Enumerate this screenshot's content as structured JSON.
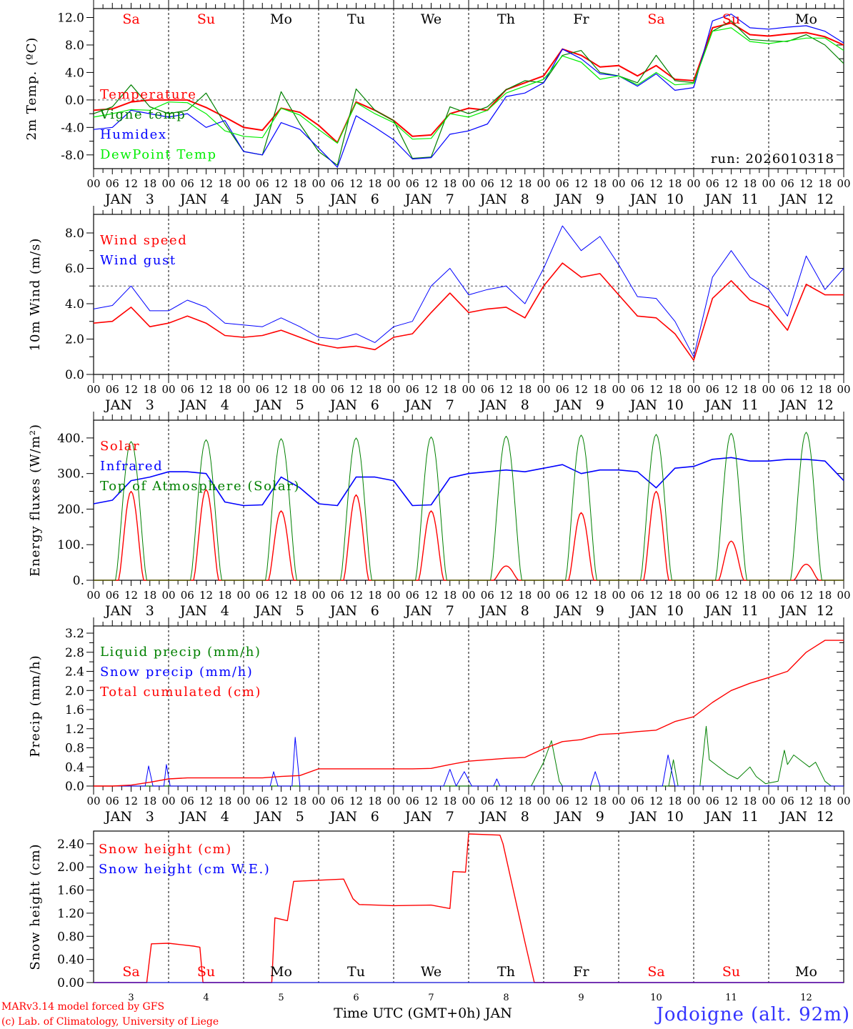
{
  "meteogram": {
    "station": "Jodoigne (alt. 92m)",
    "run_label": "run: 2026010318",
    "credit_line1": "MARv3.14 model forced by GFS",
    "credit_line2": "(c) Lab. of Climatology, University of Liege",
    "xlabel": "Time UTC (GMT+0h) JAN",
    "month": "JAN",
    "dates": [
      "3",
      "4",
      "5",
      "6",
      "7",
      "8",
      "9",
      "10",
      "11",
      "12"
    ],
    "hour_labels": [
      "00",
      "06",
      "12",
      "18"
    ],
    "days": [
      {
        "label": "Sa",
        "weekend": true
      },
      {
        "label": "Su",
        "weekend": true
      },
      {
        "label": "Mo",
        "weekend": false
      },
      {
        "label": "Tu",
        "weekend": false
      },
      {
        "label": "We",
        "weekend": false
      },
      {
        "label": "Th",
        "weekend": false
      },
      {
        "label": "Fr",
        "weekend": false
      },
      {
        "label": "Sa",
        "weekend": true
      },
      {
        "label": "Su",
        "weekend": true
      },
      {
        "label": "Mo",
        "weekend": false
      }
    ],
    "colors": {
      "red": "#ff0000",
      "blue": "#0000ff",
      "darkgreen": "#008000",
      "green": "#00ee00",
      "weekend": "#ff0000",
      "weekday": "#000000"
    }
  },
  "chart_data": [
    {
      "type": "line",
      "id": "temp",
      "ylabel": "2m Temp. (ºC)",
      "ylim": [
        -10,
        13.3
      ],
      "yticks": [
        12,
        8,
        4,
        0,
        -4,
        -8
      ],
      "ytick_labels": [
        "12.0",
        "8.0",
        "4.0",
        "0.0",
        "-4.0",
        "-8.0"
      ],
      "ref_line": 0,
      "x_start_hour": 0,
      "x_step_hours": 6,
      "series": [
        {
          "name": "Temperature",
          "color": "#ff0000",
          "width": 2,
          "values": [
            -1.5,
            -1.3,
            -0.3,
            0,
            0,
            0,
            -1.1,
            -2.5,
            -4,
            -4.4,
            -1.2,
            -1.8,
            -3.7,
            -6.2,
            -0.3,
            -1.5,
            -3.0,
            -5.3,
            -5.1,
            -2,
            -1.2,
            -1.5,
            1.5,
            2.5,
            3.5,
            7.4,
            6.5,
            4.8,
            5.0,
            3.5,
            5.0,
            3.0,
            2.8,
            10.5,
            11.2,
            9.5,
            9.3,
            9.6,
            9.8,
            9.2,
            8.0
          ]
        },
        {
          "name": "Vigne temp",
          "color": "#008000",
          "width": 1.2,
          "values": [
            -2,
            -1,
            2.2,
            -1,
            -2,
            -1.5,
            1,
            -3.5,
            -7.5,
            -8,
            1.2,
            -3.5,
            -7.5,
            -9.5,
            1.6,
            -1.5,
            -3,
            -8.5,
            -8.3,
            -1,
            -2,
            -1,
            1.5,
            2.8,
            2.5,
            6.5,
            7.2,
            4,
            3.5,
            2.5,
            6.5,
            2.8,
            2.5,
            10,
            11.5,
            8.8,
            8.6,
            8.5,
            9.5,
            8.0,
            5.3
          ]
        },
        {
          "name": "Humidex",
          "color": "#0000ff",
          "width": 1.2,
          "values": [
            -4.3,
            -4,
            -1.5,
            -2,
            -2.5,
            -2,
            -4,
            -3,
            -7.5,
            -8,
            -3.3,
            -4.3,
            -7,
            -9.8,
            -2.3,
            -4,
            -5.8,
            -8.6,
            -8.4,
            -5,
            -4.5,
            -3.5,
            0.5,
            1,
            2.5,
            7.4,
            6,
            3.8,
            3.5,
            2,
            3.8,
            1.4,
            1.8,
            11.5,
            12.5,
            10.5,
            10.3,
            10.6,
            10.8,
            10,
            8.3
          ]
        },
        {
          "name": "DewPoint Temp",
          "color": "#00ee00",
          "width": 1.2,
          "values": [
            -2.5,
            -2,
            -1.4,
            -1.5,
            -0.3,
            -0.4,
            -2,
            -4.5,
            -5.3,
            -5.5,
            -1.2,
            -2.2,
            -4.3,
            -6.3,
            -0.4,
            -2,
            -3.3,
            -5.7,
            -5.6,
            -2,
            -2.5,
            -1.5,
            1,
            2,
            3,
            6.4,
            5.5,
            3,
            3.5,
            2.2,
            4,
            2.2,
            2.4,
            10,
            10.5,
            8.5,
            8.2,
            8.6,
            9.0,
            9.0,
            7.2
          ]
        }
      ]
    },
    {
      "type": "line",
      "id": "wind",
      "ylabel": "10m Wind (m/s)",
      "ylim": [
        0,
        9.05
      ],
      "yticks": [
        8,
        6,
        4,
        2,
        0
      ],
      "ytick_labels": [
        "8.0",
        "6.0",
        "4.0",
        "2.0",
        "0.0"
      ],
      "ref_line": 5,
      "x_start_hour": 0,
      "x_step_hours": 6,
      "series": [
        {
          "name": "Wind speed",
          "color": "#ff0000",
          "width": 1.6,
          "values": [
            2.9,
            3.0,
            3.8,
            2.7,
            2.9,
            3.3,
            2.9,
            2.2,
            2.1,
            2.2,
            2.5,
            2.1,
            1.7,
            1.5,
            1.6,
            1.4,
            2.1,
            2.3,
            3.5,
            4.6,
            3.5,
            3.7,
            3.8,
            3.2,
            5.0,
            6.3,
            5.5,
            5.7,
            4.5,
            3.3,
            3.2,
            2.3,
            0.8,
            4.3,
            5.3,
            4.2,
            3.8,
            2.5,
            5.1,
            4.5,
            4.5
          ]
        },
        {
          "name": "Wind gust",
          "color": "#0000ff",
          "width": 1,
          "values": [
            3.7,
            3.9,
            5.0,
            3.6,
            3.6,
            4.2,
            3.8,
            2.9,
            2.8,
            2.7,
            3.2,
            2.7,
            2.1,
            2.0,
            2.3,
            1.8,
            2.7,
            3.0,
            5.0,
            6.0,
            4.5,
            4.8,
            5.0,
            4.0,
            6.0,
            8.4,
            7.0,
            7.8,
            6.2,
            4.4,
            4.3,
            3.0,
            1.0,
            5.5,
            7.0,
            5.5,
            4.8,
            3.3,
            6.7,
            4.8,
            6.0
          ]
        }
      ]
    },
    {
      "type": "line",
      "id": "energy",
      "ylabel": "Energy fluxes (W/m²)",
      "ylim": [
        0,
        450
      ],
      "yticks": [
        400,
        300,
        200,
        100,
        0
      ],
      "ytick_labels": [
        "400.",
        "300.",
        "200.",
        "100.",
        "0."
      ],
      "x_start_hour": 0,
      "x_step_hours": 6,
      "series": [
        {
          "name": "Solar",
          "color": "#ff0000",
          "width": 1.4,
          "daily_peaks": [
            250,
            255,
            195,
            240,
            195,
            40,
            190,
            250,
            110,
            45
          ],
          "daylight_hours": [
            8,
            16
          ]
        },
        {
          "name": "Infrared",
          "color": "#0000ff",
          "width": 1.6,
          "values": [
            215,
            225,
            280,
            290,
            305,
            305,
            300,
            220,
            210,
            212,
            290,
            260,
            215,
            210,
            290,
            290,
            280,
            210,
            212,
            288,
            300,
            305,
            310,
            305,
            315,
            325,
            300,
            310,
            310,
            305,
            260,
            315,
            320,
            340,
            345,
            335,
            335,
            340,
            340,
            335,
            280
          ]
        },
        {
          "name": "Top of Atmosphere (Solar)",
          "color": "#008000",
          "width": 1,
          "daily_peaks": [
            390,
            395,
            398,
            400,
            403,
            405,
            408,
            410,
            413,
            416
          ],
          "daylight_hours": [
            7,
            17
          ]
        }
      ]
    },
    {
      "type": "line",
      "id": "precip",
      "ylabel": "Precip (mm/h)",
      "ylim": [
        0,
        3.35
      ],
      "yticks": [
        3.2,
        2.8,
        2.4,
        2.0,
        1.6,
        1.2,
        0.8,
        0.4,
        0
      ],
      "ytick_labels": [
        "3.2",
        "2.8",
        "2.4",
        "2.0",
        "1.6",
        "1.2",
        "0.8",
        "0.4",
        "0.0"
      ],
      "x_start_hour": 0,
      "x_step_hours": 6,
      "series": [
        {
          "name": "Liquid precip (mm/h)",
          "color": "#008000",
          "width": 1,
          "points": [
            [
              0,
              0
            ],
            [
              140,
              0
            ],
            [
              144,
              0.5
            ],
            [
              146.5,
              0.95
            ],
            [
              149,
              0.1
            ],
            [
              150,
              0
            ],
            [
              184,
              0
            ],
            [
              185.5,
              0.55
            ],
            [
              187,
              0
            ],
            [
              194,
              0
            ],
            [
              196,
              1.25
            ],
            [
              197,
              0.55
            ],
            [
              199,
              0.45
            ],
            [
              203,
              0.25
            ],
            [
              206,
              0.15
            ],
            [
              210,
              0.4
            ],
            [
              212,
              0.2
            ],
            [
              215,
              0.05
            ],
            [
              219,
              0.1
            ],
            [
              221,
              0.75
            ],
            [
              222,
              0.45
            ],
            [
              224,
              0.65
            ],
            [
              227,
              0.5
            ],
            [
              229,
              0.4
            ],
            [
              231,
              0.5
            ],
            [
              234,
              0.1
            ],
            [
              236,
              0
            ],
            [
              240,
              0
            ]
          ]
        },
        {
          "name": "Snow precip (mm/h)",
          "color": "#0000ff",
          "width": 1,
          "points": [
            [
              0,
              0
            ],
            [
              16.5,
              0
            ],
            [
              17.6,
              0.42
            ],
            [
              19,
              0
            ],
            [
              22.5,
              0
            ],
            [
              23.3,
              0.45
            ],
            [
              24.5,
              0
            ],
            [
              56.5,
              0
            ],
            [
              57.6,
              0.3
            ],
            [
              59,
              0
            ],
            [
              63.5,
              0
            ],
            [
              64.5,
              1.02
            ],
            [
              66,
              0
            ],
            [
              112,
              0
            ],
            [
              114,
              0.35
            ],
            [
              116,
              0
            ],
            [
              118.6,
              0.3
            ],
            [
              121,
              0
            ],
            [
              128,
              0
            ],
            [
              129,
              0.15
            ],
            [
              130,
              0
            ],
            [
              159,
              0
            ],
            [
              160.5,
              0.3
            ],
            [
              162,
              0
            ],
            [
              182,
              0
            ],
            [
              183.8,
              0.65
            ],
            [
              186,
              0
            ],
            [
              240,
              0
            ]
          ]
        },
        {
          "name": "Total cumulated (cm)",
          "color": "#ff0000",
          "width": 1.4,
          "values": [
            0,
            0,
            0.02,
            0.08,
            0.15,
            0.17,
            0.17,
            0.17,
            0.17,
            0.17,
            0.2,
            0.22,
            0.36,
            0.36,
            0.36,
            0.36,
            0.36,
            0.36,
            0.37,
            0.45,
            0.52,
            0.55,
            0.58,
            0.6,
            0.78,
            0.93,
            0.97,
            1.08,
            1.1,
            1.14,
            1.17,
            1.35,
            1.45,
            1.75,
            2.0,
            2.15,
            2.27,
            2.4,
            2.8,
            3.05,
            3.05
          ]
        }
      ]
    },
    {
      "type": "line",
      "id": "snow",
      "ylabel": "Snow height (cm)",
      "ylim": [
        0,
        2.62
      ],
      "yticks": [
        2.4,
        2.0,
        1.6,
        1.2,
        0.8,
        0.4,
        0
      ],
      "ytick_labels": [
        "2.40",
        "2.00",
        "1.60",
        "1.20",
        "0.80",
        "0.40",
        "0.00"
      ],
      "series": [
        {
          "name": "Snow height (cm)",
          "color": "#ff0000",
          "width": 1.4,
          "points": [
            [
              0,
              0
            ],
            [
              17,
              0
            ],
            [
              18.5,
              0.67
            ],
            [
              24,
              0.68
            ],
            [
              32,
              0.63
            ],
            [
              34,
              0.61
            ],
            [
              35,
              0
            ],
            [
              57,
              0
            ],
            [
              58,
              1.12
            ],
            [
              62,
              1.07
            ],
            [
              64,
              1.75
            ],
            [
              72,
              1.77
            ],
            [
              80,
              1.79
            ],
            [
              83,
              1.45
            ],
            [
              85,
              1.35
            ],
            [
              96,
              1.33
            ],
            [
              108,
              1.34
            ],
            [
              114,
              1.28
            ],
            [
              115,
              1.92
            ],
            [
              119,
              1.91
            ],
            [
              120,
              2.57
            ],
            [
              130,
              2.55
            ],
            [
              131,
              2.4
            ],
            [
              138,
              0.7
            ],
            [
              141,
              0
            ],
            [
              240,
              0
            ]
          ]
        },
        {
          "name": "Snow height (cm W.E.)",
          "color": "#0000ff",
          "width": 1,
          "points": [
            [
              0,
              0
            ],
            [
              240,
              0
            ]
          ]
        }
      ]
    }
  ]
}
